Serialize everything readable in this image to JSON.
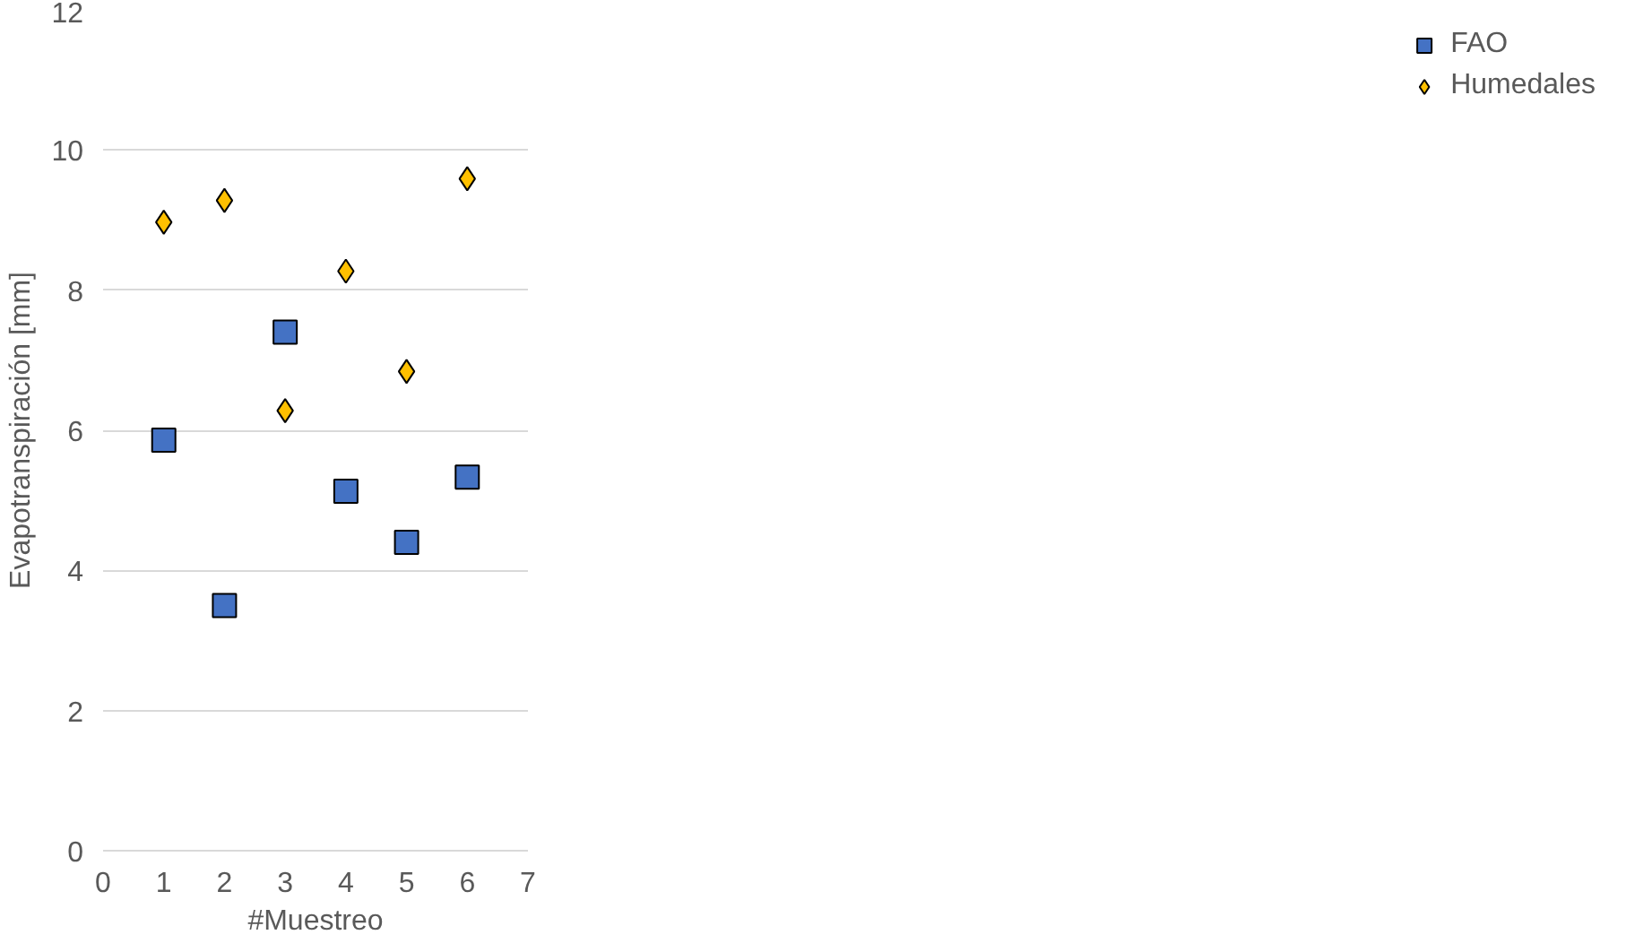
{
  "chart_data": {
    "type": "scatter",
    "xlabel": "#Muestreo",
    "ylabel": "Evapotranspiración [mm]",
    "x": [
      1,
      2,
      3,
      4,
      5,
      6
    ],
    "series": [
      {
        "name": "FAO",
        "color": "#4472c4",
        "marker": "square",
        "values": [
          5.86,
          3.5,
          7.4,
          5.13,
          4.4,
          5.33
        ]
      },
      {
        "name": "Humedales",
        "color": "#ffc000",
        "marker": "diamond",
        "values": [
          8.97,
          9.28,
          6.28,
          8.27,
          6.84,
          9.59
        ]
      }
    ],
    "xlim": [
      0,
      7
    ],
    "xticks": [
      0,
      1,
      2,
      3,
      4,
      5,
      6,
      7
    ],
    "ylim": [
      0,
      12
    ],
    "yticks": [
      0,
      2,
      4,
      6,
      8,
      10,
      12
    ],
    "grid": "y",
    "legend": "right"
  }
}
